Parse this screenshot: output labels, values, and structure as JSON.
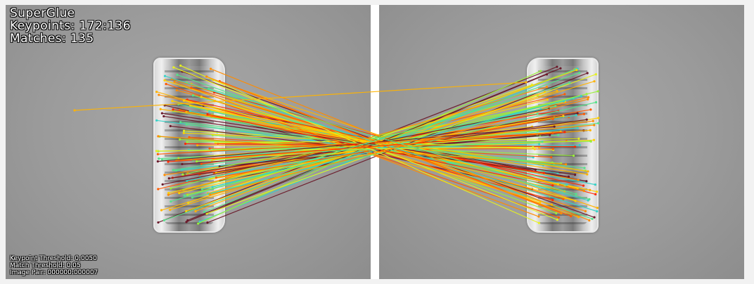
{
  "overlay": {
    "title": "SuperGlue",
    "keypoints": "Keypoints: 172:136",
    "matches": "Matches: 135",
    "keypoint_threshold": "Keypoint Threshold: 0.0050",
    "match_threshold": "Match Threshold: 0.05",
    "image_pair": "Image Pair: 000000:000007"
  },
  "colors": {
    "background": "#f2f2f2",
    "divider": "#ffffff",
    "match_palette": [
      "#ff2a00",
      "#ff5a00",
      "#ff8c00",
      "#ffb300",
      "#ffd000",
      "#e6f020",
      "#9aef3a",
      "#55e28a",
      "#35d2c8",
      "#6a1a2a"
    ]
  }
}
